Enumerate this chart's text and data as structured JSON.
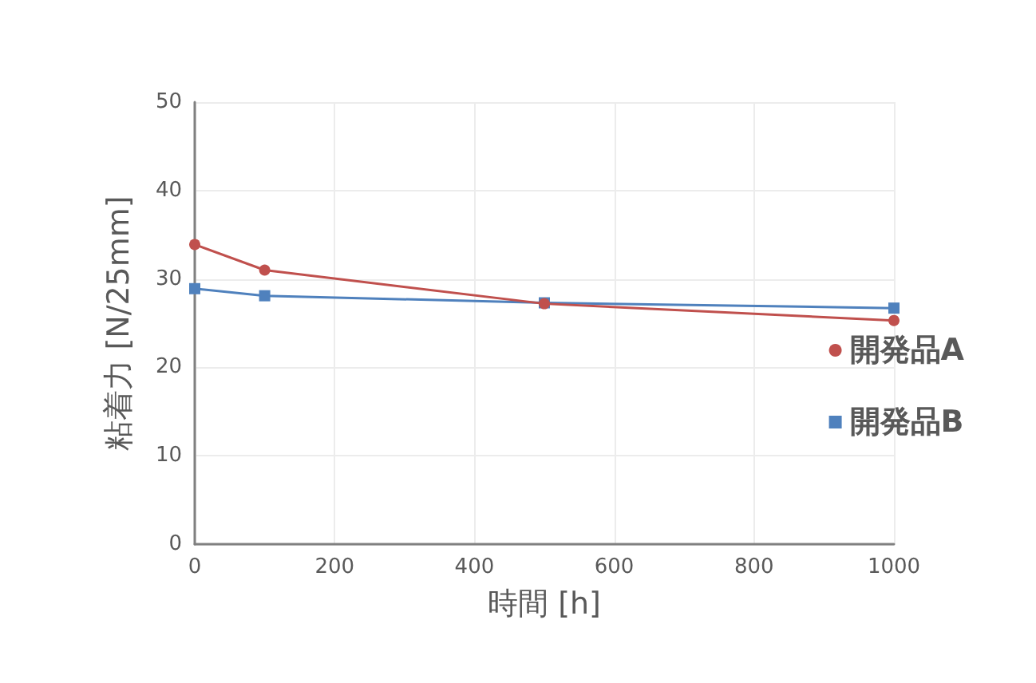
{
  "chart_data": {
    "type": "line",
    "xlabel": "時間 [h]",
    "ylabel": "粘着力 [N/25mm]",
    "x": [
      0,
      100,
      500,
      1000
    ],
    "series": [
      {
        "name": "開発品A",
        "color": "#c0504d",
        "marker": "circle",
        "values": [
          33.9,
          31.0,
          27.2,
          25.3
        ]
      },
      {
        "name": "開発品B",
        "color": "#4f81bd",
        "marker": "square",
        "values": [
          28.9,
          28.1,
          27.3,
          26.7
        ]
      }
    ],
    "xlim": [
      0,
      1000
    ],
    "xticks": [
      0,
      200,
      400,
      600,
      800,
      1000
    ],
    "ylim": [
      0,
      50
    ],
    "yticks": [
      0,
      10,
      20,
      30,
      40,
      50
    ],
    "grid": true,
    "legend": "right",
    "line_style": "solid"
  }
}
